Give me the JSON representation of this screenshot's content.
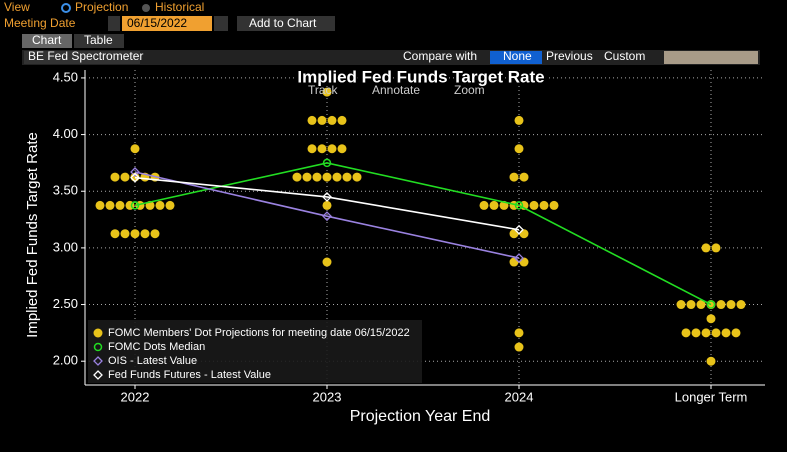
{
  "ui": {
    "view": "View",
    "projection": "Projection",
    "historical": "Historical",
    "meeting_date": "Meeting Date",
    "date": "06/15/2022",
    "add": "Add to Chart",
    "tab_chart": "Chart",
    "tab_table": "Table",
    "spectrometer": "BE Fed Spectrometer",
    "compare": "Compare with",
    "none": "None",
    "previous": "Previous",
    "custom": "Custom",
    "track": "Track",
    "annotate": "Annotate",
    "zoom": "Zoom"
  },
  "chart_data": {
    "type": "dotplot",
    "title": "Implied Fed Funds Target Rate",
    "x_label": "Projection Year End",
    "y_label": "Implied Fed Funds Target Rate",
    "categories": [
      "2022",
      "2023",
      "2024",
      "Longer Term"
    ],
    "ylim": [
      1.79,
      4.57
    ],
    "yticks": [
      {
        "value": 2,
        "label": "2.00"
      },
      {
        "value": 2.5,
        "label": "2.50"
      },
      {
        "value": 3,
        "label": "3.00"
      },
      {
        "value": 3.5,
        "label": "3.50"
      },
      {
        "value": 4,
        "label": "4.00"
      },
      {
        "value": 4.5,
        "label": "4.50"
      }
    ],
    "grid": true,
    "legend": "lower left",
    "series": [
      {
        "name": "FOMC Members' Dot Projections for meeting date 06/15/2022",
        "color": "#e8c31a",
        "marker": "dot",
        "values": [
          [
            3.875,
            3.625,
            3.625,
            3.625,
            3.625,
            3.625,
            3.375,
            3.375,
            3.375,
            3.375,
            3.375,
            3.375,
            3.375,
            3.375,
            3.125,
            3.125,
            3.125,
            3.125,
            3.125
          ],
          [
            4.375,
            4.125,
            4.125,
            4.125,
            4.125,
            3.875,
            3.875,
            3.875,
            3.875,
            3.625,
            3.625,
            3.625,
            3.625,
            3.625,
            3.625,
            3.625,
            3.375,
            2.875
          ],
          [
            4.125,
            3.875,
            3.625,
            3.625,
            3.375,
            3.375,
            3.375,
            3.375,
            3.375,
            3.375,
            3.375,
            3.375,
            3.125,
            3.125,
            2.875,
            2.875,
            2.25,
            2.125
          ],
          [
            3,
            3,
            2.5,
            2.5,
            2.5,
            2.5,
            2.5,
            2.5,
            2.5,
            2.375,
            2.25,
            2.25,
            2.25,
            2.25,
            2.25,
            2.25,
            2
          ]
        ]
      },
      {
        "name": "FOMC Dots Median",
        "color": "#22dd22",
        "marker": "ring",
        "values": [
          3.375,
          3.75,
          3.375,
          2.5
        ]
      },
      {
        "name": "OIS - Latest Value",
        "color": "#9a82e0",
        "marker": "diamond",
        "values": [
          3.67,
          3.28,
          2.91,
          null
        ]
      },
      {
        "name": "Fed Funds Futures - Latest Value",
        "color": "#ffffff",
        "marker": "diamond",
        "values": [
          3.62,
          3.45,
          3.16,
          null
        ]
      }
    ]
  }
}
